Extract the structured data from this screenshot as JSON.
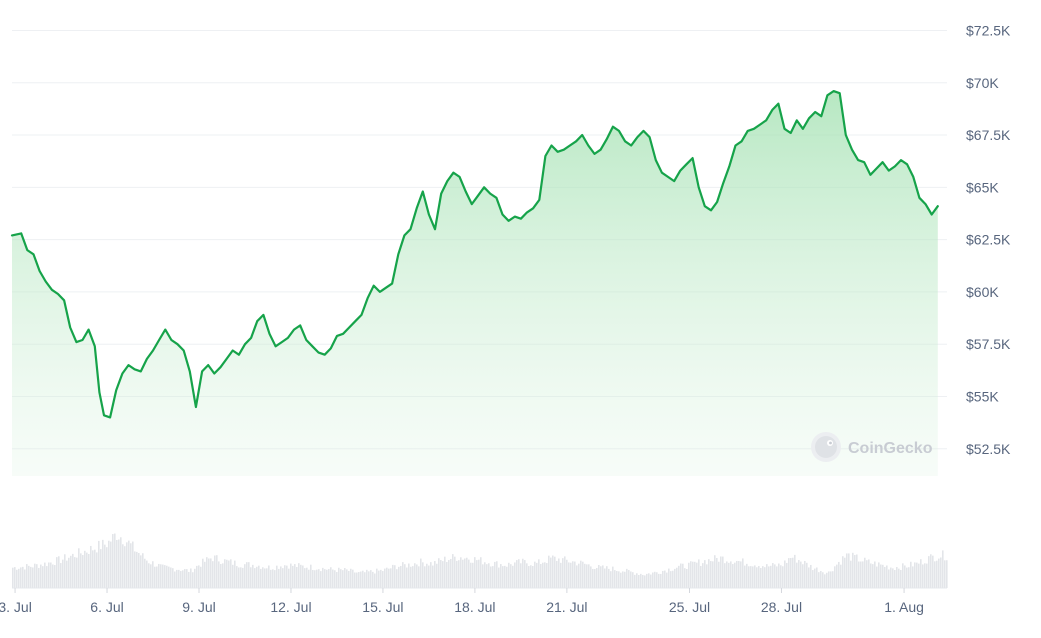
{
  "watermark": {
    "label": "CoinGecko",
    "icon": "coingecko-gecko-icon"
  },
  "colors": {
    "line": "#16a34a",
    "fill_top": "#a7e3b4",
    "grid": "#eef0f3",
    "volume": "#e3e5e9",
    "axis_text": "#58667e"
  },
  "chart_data": {
    "type": "area",
    "title": "",
    "xlabel": "",
    "ylabel": "",
    "grid": true,
    "y_axis_position": "right",
    "ylim": [
      51200,
      73000
    ],
    "yticks": [
      {
        "value": 52500,
        "label": "$52.5K"
      },
      {
        "value": 55000,
        "label": "$55K"
      },
      {
        "value": 57500,
        "label": "$57.5K"
      },
      {
        "value": 60000,
        "label": "$60K"
      },
      {
        "value": 62500,
        "label": "$62.5K"
      },
      {
        "value": 65000,
        "label": "$65K"
      },
      {
        "value": 67500,
        "label": "$67.5K"
      },
      {
        "value": 70000,
        "label": "$70K"
      },
      {
        "value": 72500,
        "label": "$72.5K"
      }
    ],
    "xlim": [
      2.9,
      33.4
    ],
    "xticks": [
      {
        "value": 3,
        "label": "3. Jul"
      },
      {
        "value": 6,
        "label": "6. Jul"
      },
      {
        "value": 9,
        "label": "9. Jul"
      },
      {
        "value": 12,
        "label": "12. Jul"
      },
      {
        "value": 15,
        "label": "15. Jul"
      },
      {
        "value": 18,
        "label": "18. Jul"
      },
      {
        "value": 21,
        "label": "21. Jul"
      },
      {
        "value": 25,
        "label": "25. Jul"
      },
      {
        "value": 28,
        "label": "28. Jul"
      },
      {
        "value": 32,
        "label": "1. Aug"
      }
    ],
    "series": [
      {
        "x_unit": "day of July (32 = 1 Aug)",
        "points": [
          [
            2.9,
            62700
          ],
          [
            3.2,
            62800
          ],
          [
            3.4,
            62000
          ],
          [
            3.6,
            61800
          ],
          [
            3.8,
            61000
          ],
          [
            4.0,
            60500
          ],
          [
            4.2,
            60100
          ],
          [
            4.4,
            59900
          ],
          [
            4.6,
            59600
          ],
          [
            4.8,
            58300
          ],
          [
            5.0,
            57600
          ],
          [
            5.2,
            57700
          ],
          [
            5.4,
            58200
          ],
          [
            5.6,
            57400
          ],
          [
            5.75,
            55200
          ],
          [
            5.9,
            54100
          ],
          [
            6.1,
            54000
          ],
          [
            6.3,
            55300
          ],
          [
            6.5,
            56100
          ],
          [
            6.7,
            56500
          ],
          [
            6.9,
            56300
          ],
          [
            7.1,
            56200
          ],
          [
            7.3,
            56800
          ],
          [
            7.5,
            57200
          ],
          [
            7.7,
            57700
          ],
          [
            7.9,
            58200
          ],
          [
            8.1,
            57700
          ],
          [
            8.3,
            57500
          ],
          [
            8.5,
            57200
          ],
          [
            8.7,
            56200
          ],
          [
            8.9,
            54500
          ],
          [
            9.1,
            56200
          ],
          [
            9.3,
            56500
          ],
          [
            9.5,
            56100
          ],
          [
            9.7,
            56400
          ],
          [
            9.9,
            56800
          ],
          [
            10.1,
            57200
          ],
          [
            10.3,
            57000
          ],
          [
            10.5,
            57500
          ],
          [
            10.7,
            57800
          ],
          [
            10.9,
            58600
          ],
          [
            11.1,
            58900
          ],
          [
            11.3,
            58000
          ],
          [
            11.5,
            57400
          ],
          [
            11.7,
            57600
          ],
          [
            11.9,
            57800
          ],
          [
            12.1,
            58200
          ],
          [
            12.3,
            58400
          ],
          [
            12.5,
            57700
          ],
          [
            12.7,
            57400
          ],
          [
            12.9,
            57100
          ],
          [
            13.1,
            57000
          ],
          [
            13.3,
            57300
          ],
          [
            13.5,
            57900
          ],
          [
            13.7,
            58000
          ],
          [
            13.9,
            58300
          ],
          [
            14.1,
            58600
          ],
          [
            14.3,
            58900
          ],
          [
            14.5,
            59700
          ],
          [
            14.7,
            60300
          ],
          [
            14.9,
            60000
          ],
          [
            15.1,
            60200
          ],
          [
            15.3,
            60400
          ],
          [
            15.5,
            61800
          ],
          [
            15.7,
            62700
          ],
          [
            15.9,
            63000
          ],
          [
            16.1,
            64000
          ],
          [
            16.3,
            64800
          ],
          [
            16.5,
            63700
          ],
          [
            16.7,
            63000
          ],
          [
            16.9,
            64700
          ],
          [
            17.1,
            65300
          ],
          [
            17.3,
            65700
          ],
          [
            17.5,
            65500
          ],
          [
            17.7,
            64800
          ],
          [
            17.9,
            64200
          ],
          [
            18.1,
            64600
          ],
          [
            18.3,
            65000
          ],
          [
            18.5,
            64700
          ],
          [
            18.7,
            64500
          ],
          [
            18.9,
            63700
          ],
          [
            19.1,
            63400
          ],
          [
            19.3,
            63600
          ],
          [
            19.5,
            63500
          ],
          [
            19.7,
            63800
          ],
          [
            19.9,
            64000
          ],
          [
            20.1,
            64400
          ],
          [
            20.3,
            66500
          ],
          [
            20.5,
            67000
          ],
          [
            20.7,
            66700
          ],
          [
            20.9,
            66800
          ],
          [
            21.1,
            67000
          ],
          [
            21.3,
            67200
          ],
          [
            21.5,
            67500
          ],
          [
            21.7,
            67000
          ],
          [
            21.9,
            66600
          ],
          [
            22.1,
            66800
          ],
          [
            22.3,
            67300
          ],
          [
            22.5,
            67900
          ],
          [
            22.7,
            67700
          ],
          [
            22.9,
            67200
          ],
          [
            23.1,
            67000
          ],
          [
            23.3,
            67400
          ],
          [
            23.5,
            67700
          ],
          [
            23.7,
            67400
          ],
          [
            23.9,
            66300
          ],
          [
            24.1,
            65700
          ],
          [
            24.3,
            65500
          ],
          [
            24.5,
            65300
          ],
          [
            24.7,
            65800
          ],
          [
            24.9,
            66100
          ],
          [
            25.1,
            66400
          ],
          [
            25.3,
            65000
          ],
          [
            25.5,
            64100
          ],
          [
            25.7,
            63900
          ],
          [
            25.9,
            64300
          ],
          [
            26.1,
            65200
          ],
          [
            26.3,
            66000
          ],
          [
            26.5,
            67000
          ],
          [
            26.7,
            67200
          ],
          [
            26.9,
            67700
          ],
          [
            27.1,
            67800
          ],
          [
            27.3,
            68000
          ],
          [
            27.5,
            68200
          ],
          [
            27.7,
            68700
          ],
          [
            27.9,
            69000
          ],
          [
            28.1,
            67800
          ],
          [
            28.3,
            67600
          ],
          [
            28.5,
            68200
          ],
          [
            28.7,
            67800
          ],
          [
            28.9,
            68300
          ],
          [
            29.1,
            68600
          ],
          [
            29.3,
            68400
          ],
          [
            29.5,
            69400
          ],
          [
            29.7,
            69600
          ],
          [
            29.9,
            69500
          ],
          [
            30.1,
            67500
          ],
          [
            30.3,
            66800
          ],
          [
            30.5,
            66300
          ],
          [
            30.7,
            66200
          ],
          [
            30.9,
            65600
          ],
          [
            31.1,
            65900
          ],
          [
            31.3,
            66200
          ],
          [
            31.5,
            65800
          ],
          [
            31.7,
            66000
          ],
          [
            31.9,
            66300
          ],
          [
            32.1,
            66100
          ],
          [
            32.3,
            65500
          ],
          [
            32.5,
            64500
          ],
          [
            32.7,
            64200
          ],
          [
            32.9,
            63700
          ],
          [
            33.1,
            64100
          ]
        ]
      }
    ],
    "volume": {
      "ylim": [
        0,
        100
      ],
      "points": [
        [
          2.9,
          30
        ],
        [
          3.5,
          32
        ],
        [
          4.0,
          36
        ],
        [
          4.5,
          42
        ],
        [
          5.0,
          50
        ],
        [
          5.5,
          58
        ],
        [
          6.0,
          66
        ],
        [
          6.3,
          80
        ],
        [
          6.6,
          70
        ],
        [
          6.9,
          56
        ],
        [
          7.3,
          40
        ],
        [
          7.8,
          30
        ],
        [
          8.3,
          28
        ],
        [
          8.7,
          25
        ],
        [
          9.0,
          35
        ],
        [
          9.4,
          45
        ],
        [
          9.8,
          40
        ],
        [
          10.3,
          35
        ],
        [
          10.8,
          34
        ],
        [
          11.3,
          30
        ],
        [
          11.8,
          34
        ],
        [
          12.3,
          32
        ],
        [
          12.8,
          30
        ],
        [
          13.3,
          27
        ],
        [
          13.8,
          26
        ],
        [
          14.2,
          22
        ],
        [
          14.6,
          24
        ],
        [
          15.0,
          26
        ],
        [
          15.4,
          32
        ],
        [
          15.8,
          34
        ],
        [
          16.2,
          38
        ],
        [
          16.6,
          36
        ],
        [
          17.0,
          42
        ],
        [
          17.4,
          46
        ],
        [
          17.8,
          44
        ],
        [
          18.2,
          40
        ],
        [
          18.6,
          36
        ],
        [
          19.0,
          34
        ],
        [
          19.5,
          38
        ],
        [
          20.0,
          36
        ],
        [
          20.5,
          44
        ],
        [
          21.0,
          40
        ],
        [
          21.5,
          36
        ],
        [
          22.0,
          30
        ],
        [
          22.5,
          28
        ],
        [
          23.0,
          24
        ],
        [
          23.5,
          20
        ],
        [
          24.0,
          24
        ],
        [
          24.5,
          30
        ],
        [
          25.0,
          34
        ],
        [
          25.5,
          40
        ],
        [
          26.0,
          44
        ],
        [
          26.5,
          40
        ],
        [
          27.0,
          36
        ],
        [
          27.5,
          32
        ],
        [
          28.0,
          34
        ],
        [
          28.3,
          46
        ],
        [
          28.6,
          40
        ],
        [
          29.0,
          30
        ],
        [
          29.5,
          22
        ],
        [
          29.8,
          36
        ],
        [
          30.1,
          48
        ],
        [
          30.4,
          44
        ],
        [
          30.8,
          38
        ],
        [
          31.2,
          34
        ],
        [
          31.6,
          30
        ],
        [
          32.0,
          32
        ],
        [
          32.4,
          36
        ],
        [
          32.8,
          44
        ],
        [
          33.1,
          48
        ]
      ]
    }
  }
}
